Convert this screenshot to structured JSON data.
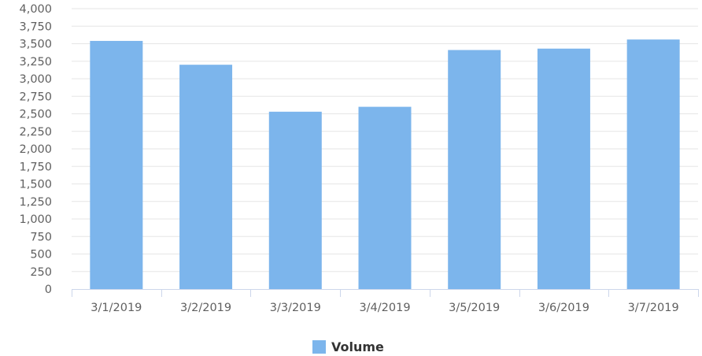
{
  "chart_data": {
    "type": "bar",
    "categories": [
      "3/1/2019",
      "3/2/2019",
      "3/3/2019",
      "3/4/2019",
      "3/5/2019",
      "3/6/2019",
      "3/7/2019"
    ],
    "series": [
      {
        "name": "Volume",
        "values": [
          3540,
          3200,
          2530,
          2600,
          3410,
          3430,
          3560
        ]
      }
    ],
    "title": "",
    "xlabel": "",
    "ylabel": "",
    "ylim": [
      0,
      4000
    ],
    "y_ticks": [
      0,
      250,
      500,
      750,
      1000,
      1250,
      1500,
      1750,
      2000,
      2250,
      2500,
      2750,
      3000,
      3250,
      3500,
      3750,
      4000
    ],
    "y_tick_labels": [
      "0",
      "250",
      "500",
      "750",
      "1,000",
      "1,250",
      "1,500",
      "1,750",
      "2,000",
      "2,250",
      "2,500",
      "2,750",
      "3,000",
      "3,250",
      "3,500",
      "3,750",
      "4,000"
    ],
    "grid": true,
    "legend_position": "bottom-center",
    "colors": {
      "bar": "#7cb5ec",
      "grid": "#e6e6e6",
      "axis": "#ccd6eb"
    }
  }
}
